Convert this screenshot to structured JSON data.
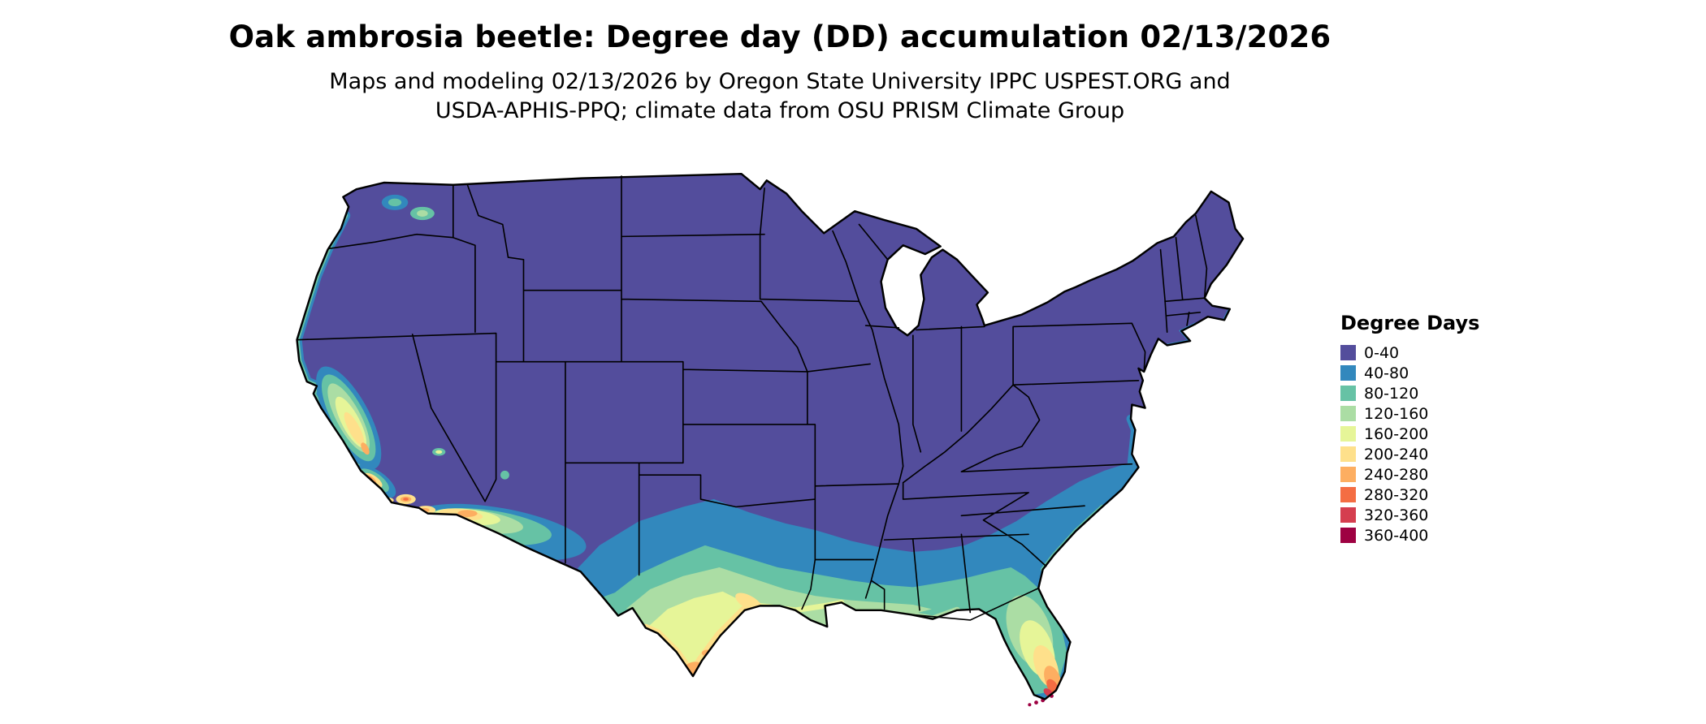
{
  "title": "Oak ambrosia beetle: Degree day (DD) accumulation 02/13/2026",
  "subtitle": {
    "line1": "Maps and modeling 02/13/2026 by Oregon State University IPPC USPEST.ORG and",
    "line2": "USDA-APHIS-PPQ; climate data from OSU PRISM Climate Group"
  },
  "legend": {
    "title": "Degree Days",
    "items": [
      {
        "label": "0-40",
        "color": "#534d9c"
      },
      {
        "label": "40-80",
        "color": "#3288bd"
      },
      {
        "label": "80-120",
        "color": "#66c2a5"
      },
      {
        "label": "120-160",
        "color": "#abdda4"
      },
      {
        "label": "160-200",
        "color": "#e6f598"
      },
      {
        "label": "200-240",
        "color": "#fee08b"
      },
      {
        "label": "240-280",
        "color": "#fdae61"
      },
      {
        "label": "280-320",
        "color": "#f46d43"
      },
      {
        "label": "320-360",
        "color": "#d53e4f"
      },
      {
        "label": "360-400",
        "color": "#9e0142"
      }
    ]
  },
  "map": {
    "geography": "contiguous United States with state borders",
    "dominant_bin": "0-40",
    "border_color": "#000000",
    "background": "#ffffff"
  },
  "chart_data": {
    "type": "heatmap",
    "title": "Oak ambrosia beetle: Degree day (DD) accumulation 02/13/2026",
    "legend_title": "Degree Days",
    "legend_position": "right",
    "bins": [
      "0-40",
      "40-80",
      "80-120",
      "120-160",
      "160-200",
      "200-240",
      "240-280",
      "280-320",
      "320-360",
      "360-400"
    ],
    "bin_colors": [
      "#534d9c",
      "#3288bd",
      "#66c2a5",
      "#abdda4",
      "#e6f598",
      "#fee08b",
      "#fdae61",
      "#f46d43",
      "#d53e4f",
      "#9e0142"
    ],
    "pattern": "Most of the northern and central US is in the 0-40 bin (purple). Accumulation increases southward: 40-120 across the mid-South and coastal Southeast, 120-240 through south Texas, the Gulf Coast and central Florida, and 240-400 in deep south Texas, southern Arizona, the southern California lowlands and south Florida; the Florida Keys reach 360-400."
  }
}
